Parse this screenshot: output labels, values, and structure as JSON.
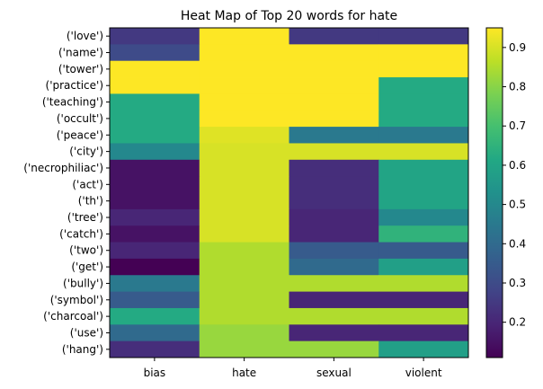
{
  "chart_data": {
    "type": "heatmap",
    "title": "Heat Map of Top 20 words for hate",
    "xlabel": "",
    "ylabel": "",
    "x_categories": [
      "bias",
      "hate",
      "sexual",
      "violent"
    ],
    "y_categories": [
      "('love')",
      "('name')",
      "('tower')",
      "('practice')",
      "('teaching')",
      "('occult')",
      "('peace')",
      "('city')",
      "('necrophiliac')",
      "('act')",
      "('th')",
      "('tree')",
      "('catch')",
      "('two')",
      "('get')",
      "('bully')",
      "('symbol')",
      "('charcoal')",
      "('use')",
      "('hang')"
    ],
    "values": [
      [
        0.25,
        0.95,
        0.25,
        0.25
      ],
      [
        0.3,
        0.95,
        0.95,
        0.95
      ],
      [
        0.95,
        0.95,
        0.95,
        0.95
      ],
      [
        0.95,
        0.95,
        0.95,
        0.62
      ],
      [
        0.62,
        0.95,
        0.95,
        0.62
      ],
      [
        0.62,
        0.95,
        0.95,
        0.62
      ],
      [
        0.62,
        0.91,
        0.45,
        0.45
      ],
      [
        0.5,
        0.9,
        0.9,
        0.9
      ],
      [
        0.15,
        0.9,
        0.22,
        0.6
      ],
      [
        0.15,
        0.9,
        0.22,
        0.6
      ],
      [
        0.15,
        0.9,
        0.22,
        0.6
      ],
      [
        0.2,
        0.9,
        0.2,
        0.5
      ],
      [
        0.15,
        0.9,
        0.2,
        0.65
      ],
      [
        0.2,
        0.85,
        0.35,
        0.35
      ],
      [
        0.11,
        0.85,
        0.4,
        0.58
      ],
      [
        0.45,
        0.85,
        0.85,
        0.85
      ],
      [
        0.35,
        0.85,
        0.2,
        0.2
      ],
      [
        0.62,
        0.85,
        0.85,
        0.85
      ],
      [
        0.4,
        0.82,
        0.2,
        0.2
      ],
      [
        0.22,
        0.82,
        0.82,
        0.58
      ]
    ],
    "colorbar": {
      "colormap": "viridis",
      "min": 0.11,
      "max": 0.95,
      "ticks": [
        0.2,
        0.3,
        0.4,
        0.5,
        0.6,
        0.7,
        0.8,
        0.9
      ],
      "tick_labels": [
        "0.2",
        "0.3",
        "0.4",
        "0.5",
        "0.6",
        "0.7",
        "0.8",
        "0.9"
      ]
    },
    "grid": false,
    "legend": "colorbar-right"
  }
}
